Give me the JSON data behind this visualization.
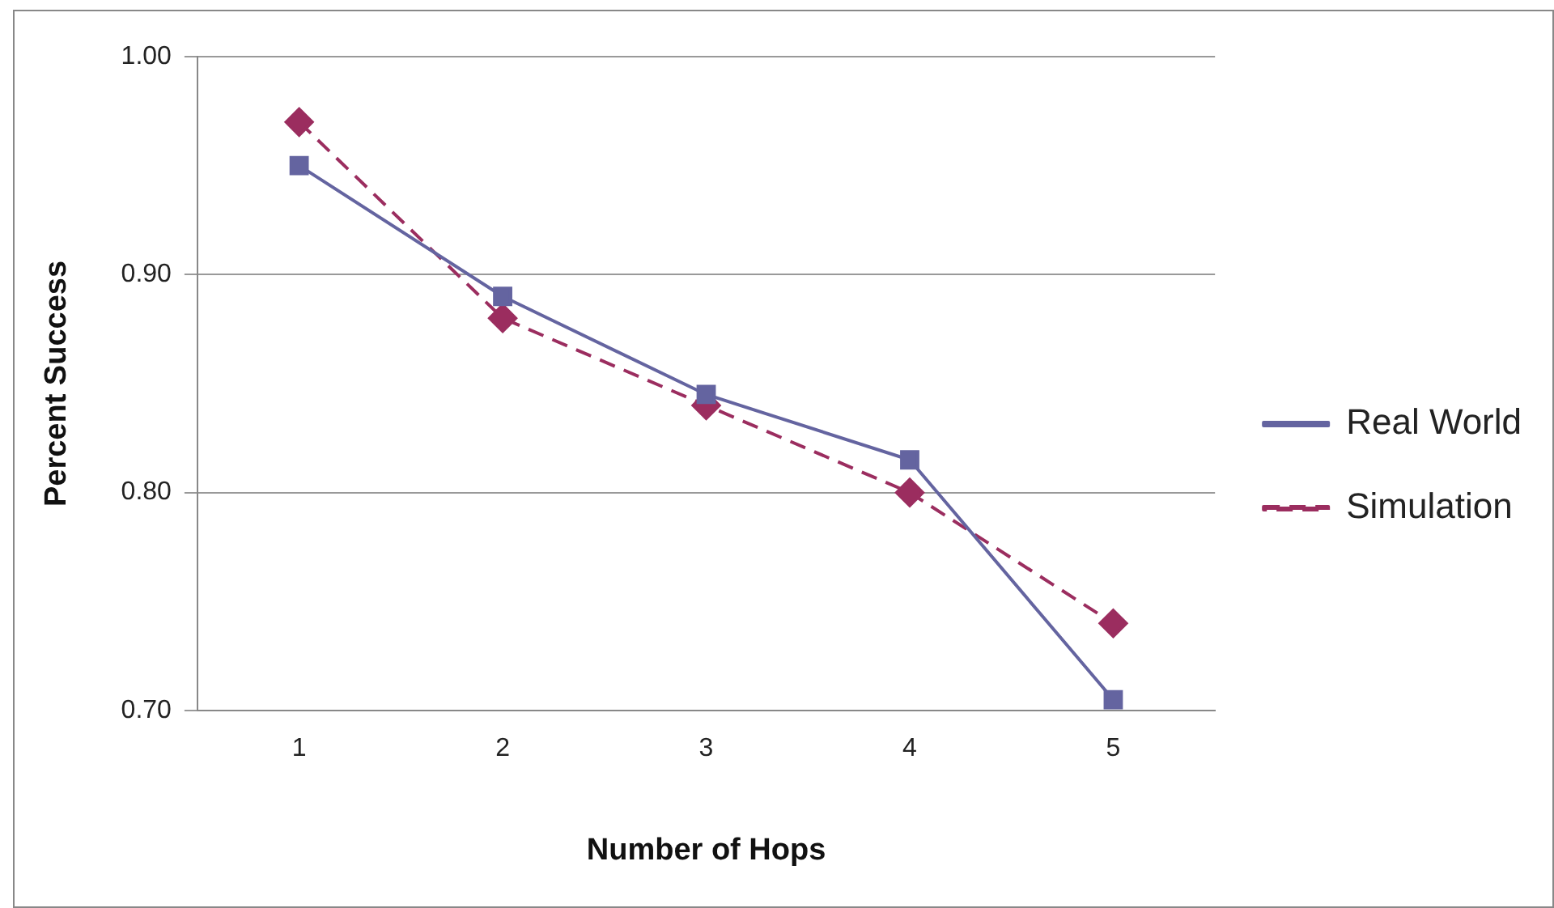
{
  "chart_data": {
    "type": "line",
    "xlabel": "Number of Hops",
    "ylabel": "Percent Success",
    "categories": [
      "1",
      "2",
      "3",
      "4",
      "5"
    ],
    "series": [
      {
        "name": "Real World",
        "color": "#6464a0",
        "values": [
          0.95,
          0.89,
          0.845,
          0.815,
          0.705
        ],
        "marker": "square",
        "line_style": "solid"
      },
      {
        "name": "Simulation",
        "color": "#9b2d5f",
        "values": [
          0.97,
          0.88,
          0.84,
          0.8,
          0.74
        ],
        "marker": "diamond",
        "line_style": "dashed"
      }
    ],
    "ylim": [
      0.7,
      1.0
    ],
    "yticks": [
      {
        "value": 0.7,
        "label": "0.70"
      },
      {
        "value": 0.8,
        "label": "0.80"
      },
      {
        "value": 0.9,
        "label": "0.90"
      },
      {
        "value": 1.0,
        "label": "1.00"
      }
    ],
    "grid": "y",
    "legend": "right"
  }
}
